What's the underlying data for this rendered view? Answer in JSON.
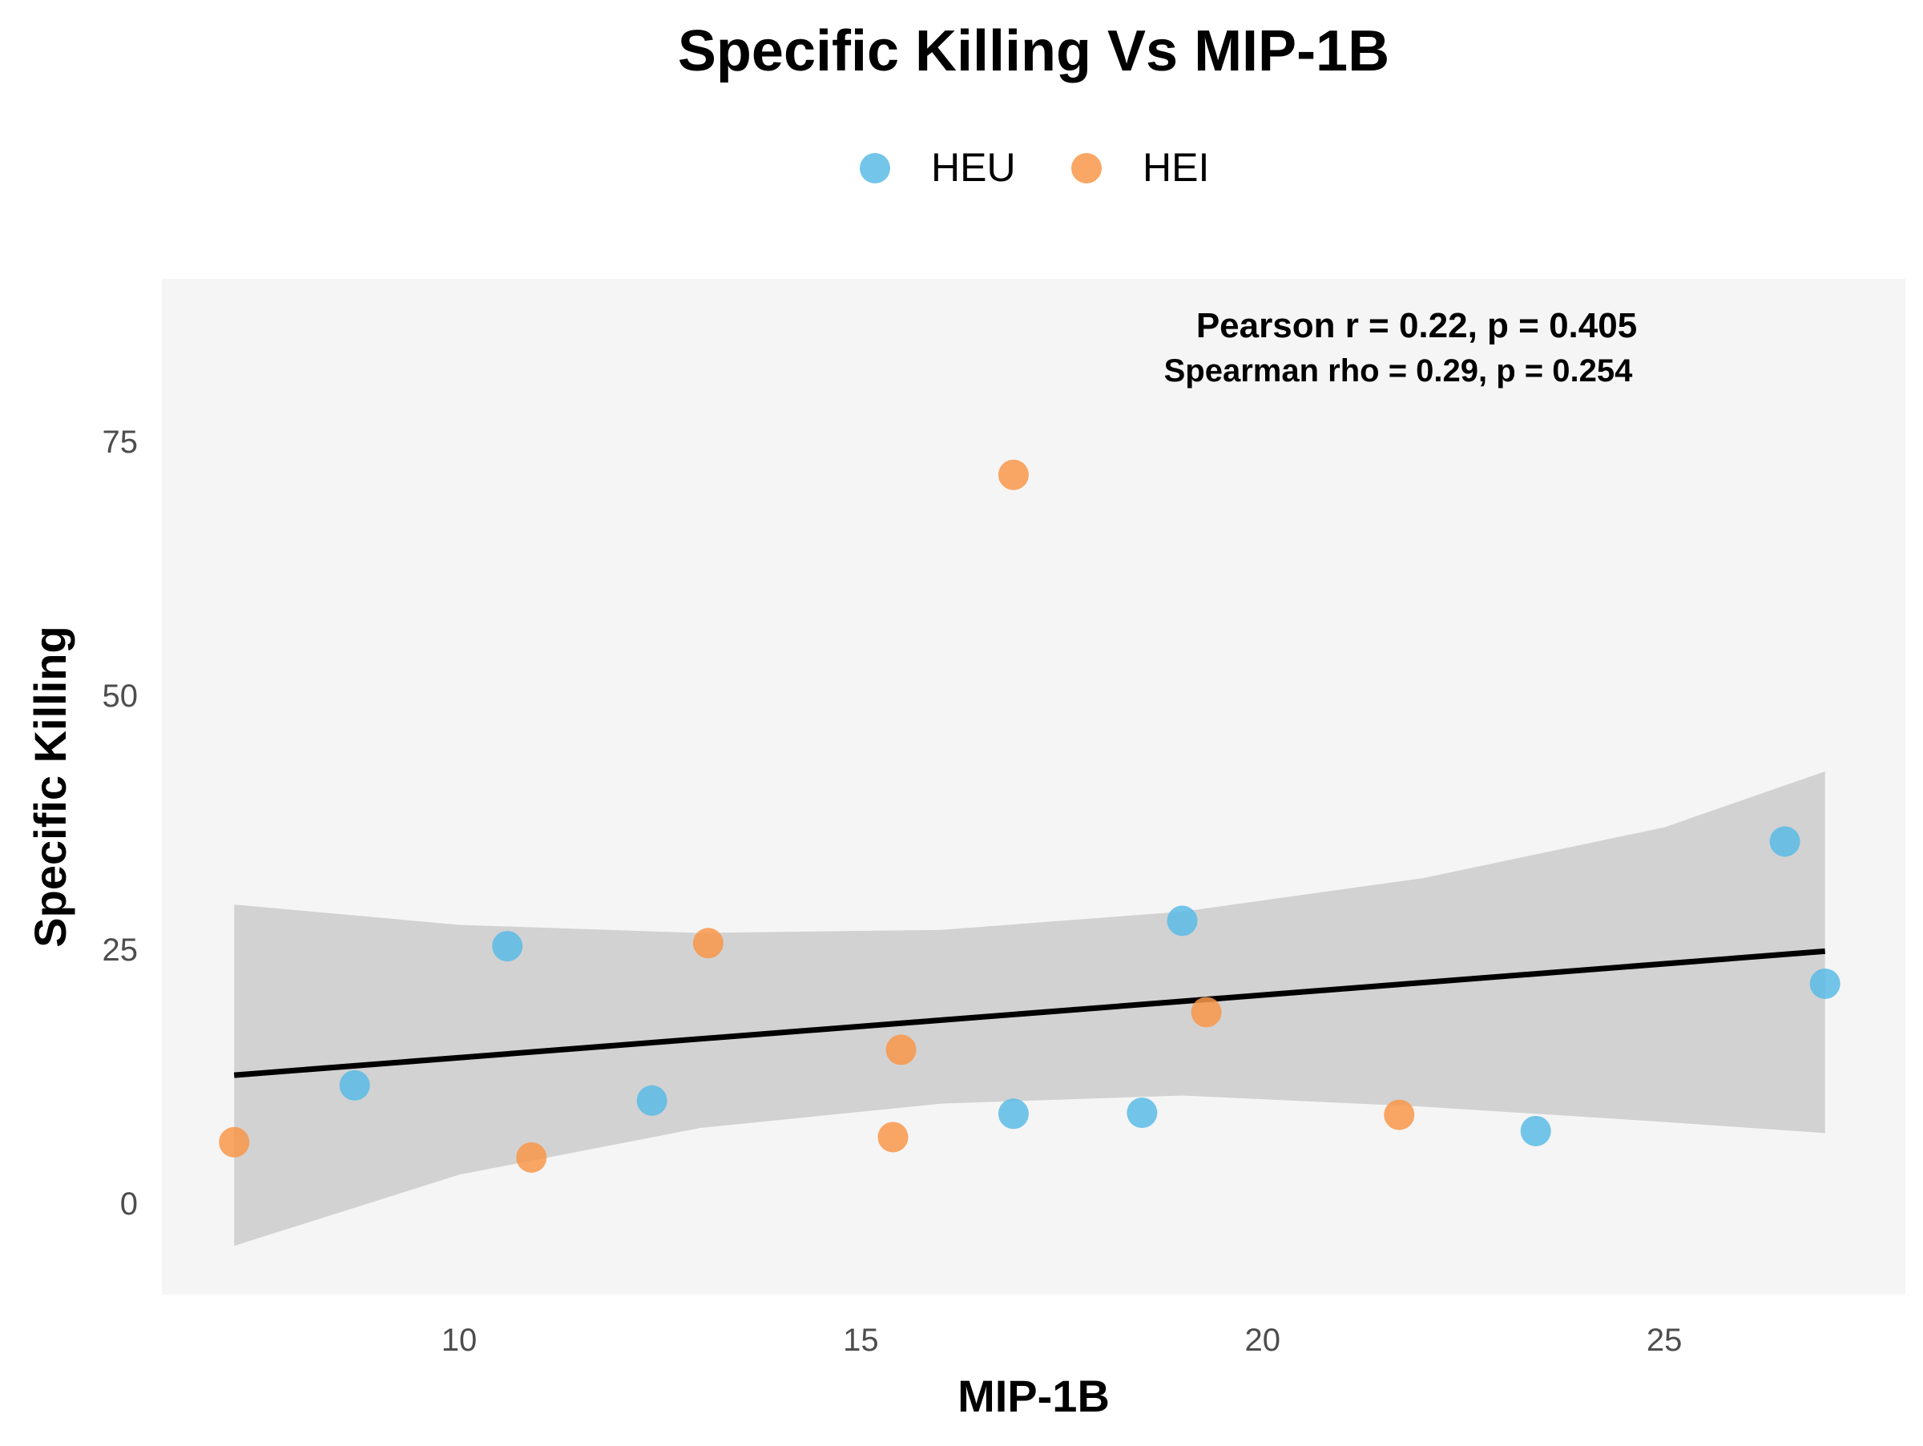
{
  "chart_data": {
    "type": "scatter",
    "title": "Specific Killing Vs MIP-1B",
    "xlabel": "MIP-1B",
    "ylabel": "Specific Killing",
    "xlim": [
      6.3,
      28.0
    ],
    "ylim": [
      -9,
      91
    ],
    "xticks": [
      10,
      15,
      20,
      25
    ],
    "yticks": [
      0,
      25,
      50,
      75
    ],
    "legend_position": "top-center",
    "grid": false,
    "series": [
      {
        "name": "HEU",
        "color": "#5bbbe6",
        "points": [
          {
            "x": 8.7,
            "y": 11.6
          },
          {
            "x": 10.6,
            "y": 25.3
          },
          {
            "x": 12.4,
            "y": 10.1
          },
          {
            "x": 16.9,
            "y": 8.8
          },
          {
            "x": 18.5,
            "y": 8.9
          },
          {
            "x": 19.0,
            "y": 27.8
          },
          {
            "x": 23.4,
            "y": 7.1
          },
          {
            "x": 26.5,
            "y": 35.6
          },
          {
            "x": 27.0,
            "y": 21.6
          }
        ]
      },
      {
        "name": "HEI",
        "color": "#f9974a",
        "points": [
          {
            "x": 7.2,
            "y": 6.0
          },
          {
            "x": 10.9,
            "y": 4.5
          },
          {
            "x": 13.1,
            "y": 25.6
          },
          {
            "x": 15.4,
            "y": 6.5
          },
          {
            "x": 15.5,
            "y": 15.1
          },
          {
            "x": 16.9,
            "y": 71.7
          },
          {
            "x": 19.3,
            "y": 18.8
          },
          {
            "x": 21.7,
            "y": 8.7
          }
        ]
      }
    ],
    "regression": {
      "x_range": [
        7.2,
        27.0
      ],
      "y_range": [
        12.6,
        24.8
      ],
      "color": "#000000",
      "ci_band": {
        "x": [
          7.2,
          10,
          13,
          16,
          19,
          22,
          25,
          27
        ],
        "upper": [
          29.4,
          27.4,
          26.6,
          26.9,
          28.7,
          32.0,
          37.0,
          42.5
        ],
        "lower": [
          -4.2,
          2.8,
          7.4,
          9.8,
          10.6,
          9.5,
          8.0,
          6.9
        ],
        "color": "#d0d0d0"
      }
    },
    "annotations": [
      "Pearson r = 0.22, p = 0.405",
      "Spearman rho = 0.29, p = 0.254"
    ],
    "panel_color": "#f5f5f5"
  }
}
